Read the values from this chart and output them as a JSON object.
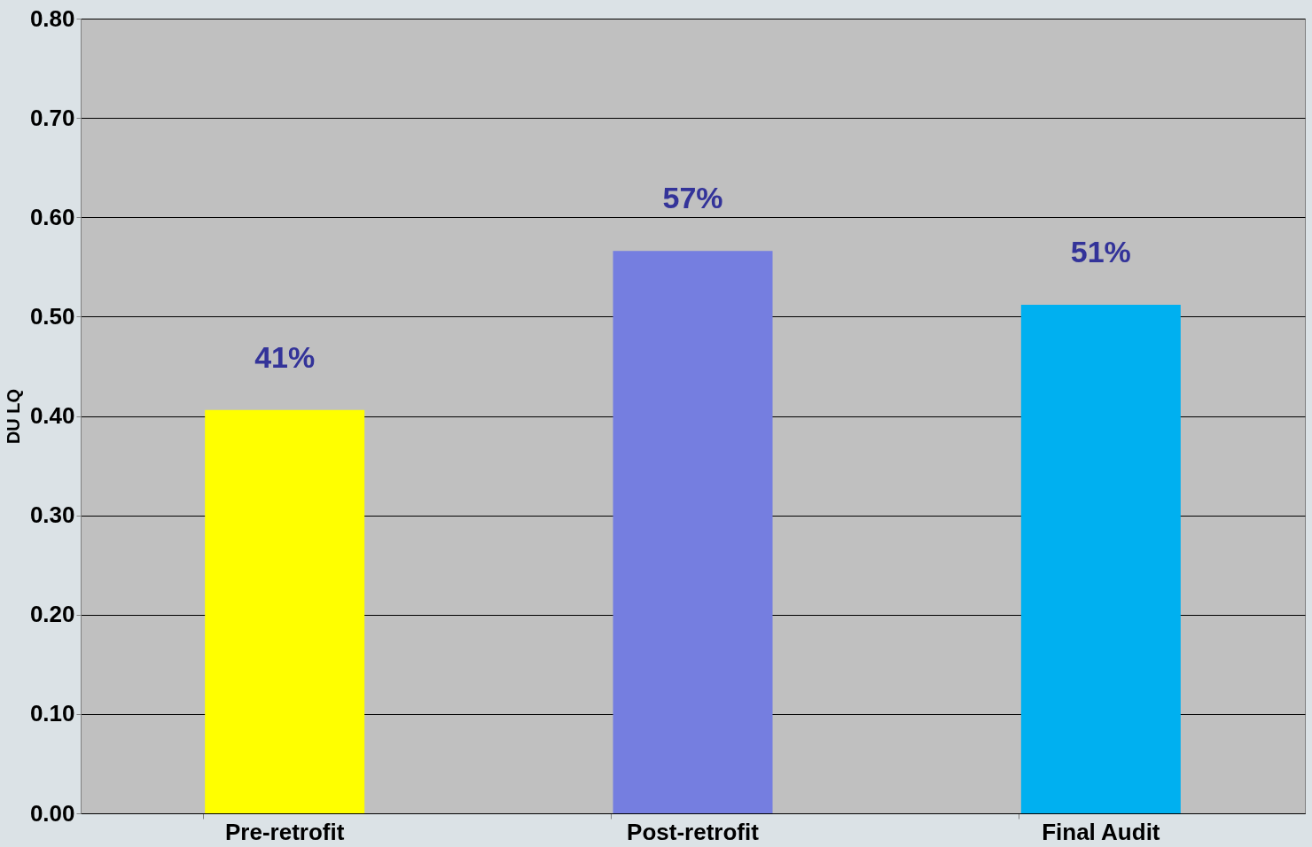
{
  "chart_data": {
    "type": "bar",
    "ylabel": "DU LQ",
    "categories": [
      "Pre-retrofit",
      "Post-retrofit",
      "Final Audit"
    ],
    "values": [
      0.406,
      0.566,
      0.512
    ],
    "colors": [
      "#ffff00",
      "#757ee0",
      "#00b0f0"
    ],
    "value_labels": [
      "41%",
      "57%",
      "51%"
    ],
    "ylim": [
      0,
      0.8
    ],
    "yticks": [
      {
        "value": 0,
        "label": "0.00"
      },
      {
        "value": 0.1,
        "label": "0.10"
      },
      {
        "value": 0.2,
        "label": "0.20"
      },
      {
        "value": 0.3,
        "label": "0.30"
      },
      {
        "value": 0.4,
        "label": "0.40"
      },
      {
        "value": 0.5,
        "label": "0.50"
      },
      {
        "value": 0.6,
        "label": "0.60"
      },
      {
        "value": 0.7,
        "label": "0.70"
      },
      {
        "value": 0.8,
        "label": "0.80"
      }
    ],
    "grid": "y",
    "legend": false
  }
}
